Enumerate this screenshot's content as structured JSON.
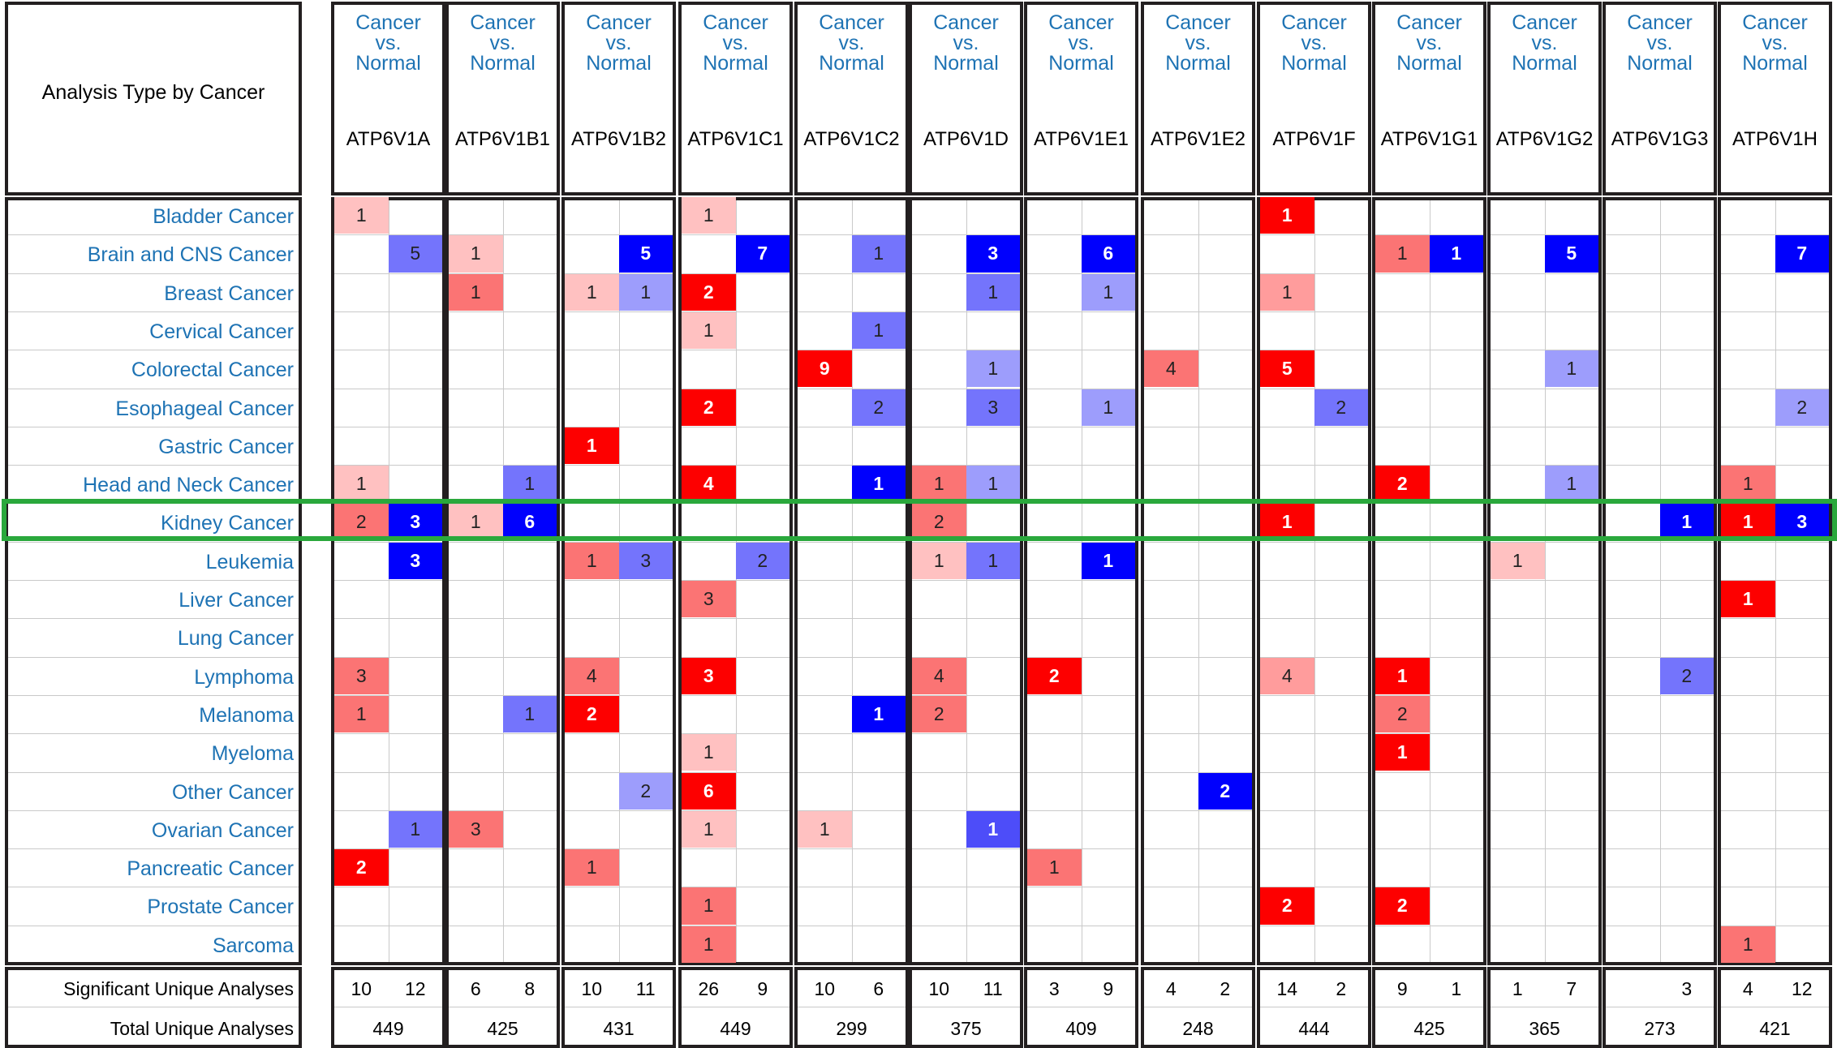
{
  "chart_data": {
    "type": "heatmap",
    "title": "Analysis Type by Cancer",
    "analysis_type_label": "Cancer vs. Normal",
    "genes": [
      "ATP6V1A",
      "ATP6V1B1",
      "ATP6V1B2",
      "ATP6V1C1",
      "ATP6V1C2",
      "ATP6V1D",
      "ATP6V1E1",
      "ATP6V1E2",
      "ATP6V1F",
      "ATP6V1G1",
      "ATP6V1G2",
      "ATP6V1G3",
      "ATP6V1H"
    ],
    "cancers": [
      "Bladder Cancer",
      "Brain and CNS Cancer",
      "Breast Cancer",
      "Cervical Cancer",
      "Colorectal Cancer",
      "Esophageal Cancer",
      "Gastric Cancer",
      "Head and Neck Cancer",
      "Kidney Cancer",
      "Leukemia",
      "Liver Cancer",
      "Lung Cancer",
      "Lymphoma",
      "Melanoma",
      "Myeloma",
      "Other Cancer",
      "Ovarian Cancer",
      "Pancreatic Cancer",
      "Prostate Cancer",
      "Sarcoma"
    ],
    "highlighted_row": "Kidney Cancer",
    "cells": [
      [
        "Bladder Cancer",
        "ATP6V1A",
        "up",
        1,
        1
      ],
      [
        "Bladder Cancer",
        "ATP6V1C1",
        "up",
        1,
        1
      ],
      [
        "Bladder Cancer",
        "ATP6V1F",
        "up",
        1,
        5
      ],
      [
        "Brain and CNS Cancer",
        "ATP6V1A",
        "down",
        5,
        3
      ],
      [
        "Brain and CNS Cancer",
        "ATP6V1B1",
        "up",
        1,
        1
      ],
      [
        "Brain and CNS Cancer",
        "ATP6V1B2",
        "down",
        5,
        5
      ],
      [
        "Brain and CNS Cancer",
        "ATP6V1C1",
        "down",
        7,
        5
      ],
      [
        "Brain and CNS Cancer",
        "ATP6V1C2",
        "down",
        1,
        3
      ],
      [
        "Brain and CNS Cancer",
        "ATP6V1D",
        "down",
        3,
        5
      ],
      [
        "Brain and CNS Cancer",
        "ATP6V1E1",
        "down",
        6,
        5
      ],
      [
        "Brain and CNS Cancer",
        "ATP6V1G1",
        "up",
        1,
        3
      ],
      [
        "Brain and CNS Cancer",
        "ATP6V1G1",
        "down",
        1,
        5
      ],
      [
        "Brain and CNS Cancer",
        "ATP6V1G2",
        "down",
        5,
        5
      ],
      [
        "Brain and CNS Cancer",
        "ATP6V1H",
        "down",
        7,
        5
      ],
      [
        "Breast Cancer",
        "ATP6V1B1",
        "up",
        1,
        3
      ],
      [
        "Breast Cancer",
        "ATP6V1B2",
        "up",
        1,
        1
      ],
      [
        "Breast Cancer",
        "ATP6V1B2",
        "down",
        1,
        2
      ],
      [
        "Breast Cancer",
        "ATP6V1C1",
        "up",
        2,
        5
      ],
      [
        "Breast Cancer",
        "ATP6V1D",
        "down",
        1,
        3
      ],
      [
        "Breast Cancer",
        "ATP6V1E1",
        "down",
        1,
        2
      ],
      [
        "Breast Cancer",
        "ATP6V1F",
        "up",
        1,
        2
      ],
      [
        "Cervical Cancer",
        "ATP6V1C1",
        "up",
        1,
        1
      ],
      [
        "Cervical Cancer",
        "ATP6V1C2",
        "down",
        1,
        3
      ],
      [
        "Colorectal Cancer",
        "ATP6V1C2",
        "up",
        9,
        5
      ],
      [
        "Colorectal Cancer",
        "ATP6V1D",
        "down",
        1,
        2
      ],
      [
        "Colorectal Cancer",
        "ATP6V1E2",
        "up",
        4,
        3
      ],
      [
        "Colorectal Cancer",
        "ATP6V1F",
        "up",
        5,
        5
      ],
      [
        "Colorectal Cancer",
        "ATP6V1G2",
        "down",
        1,
        2
      ],
      [
        "Esophageal Cancer",
        "ATP6V1C1",
        "up",
        2,
        5
      ],
      [
        "Esophageal Cancer",
        "ATP6V1C2",
        "down",
        2,
        3
      ],
      [
        "Esophageal Cancer",
        "ATP6V1D",
        "down",
        3,
        3
      ],
      [
        "Esophageal Cancer",
        "ATP6V1E1",
        "down",
        1,
        2
      ],
      [
        "Esophageal Cancer",
        "ATP6V1F",
        "down",
        2,
        3
      ],
      [
        "Esophageal Cancer",
        "ATP6V1H",
        "down",
        2,
        2
      ],
      [
        "Gastric Cancer",
        "ATP6V1B2",
        "up",
        1,
        5
      ],
      [
        "Head and Neck Cancer",
        "ATP6V1A",
        "up",
        1,
        1
      ],
      [
        "Head and Neck Cancer",
        "ATP6V1B1",
        "down",
        1,
        3
      ],
      [
        "Head and Neck Cancer",
        "ATP6V1C1",
        "up",
        4,
        5
      ],
      [
        "Head and Neck Cancer",
        "ATP6V1C2",
        "down",
        1,
        5
      ],
      [
        "Head and Neck Cancer",
        "ATP6V1D",
        "up",
        1,
        3
      ],
      [
        "Head and Neck Cancer",
        "ATP6V1D",
        "down",
        1,
        2
      ],
      [
        "Head and Neck Cancer",
        "ATP6V1G1",
        "up",
        2,
        5
      ],
      [
        "Head and Neck Cancer",
        "ATP6V1G2",
        "down",
        1,
        2
      ],
      [
        "Head and Neck Cancer",
        "ATP6V1H",
        "up",
        1,
        3
      ],
      [
        "Kidney Cancer",
        "ATP6V1A",
        "up",
        2,
        3
      ],
      [
        "Kidney Cancer",
        "ATP6V1A",
        "down",
        3,
        5
      ],
      [
        "Kidney Cancer",
        "ATP6V1B1",
        "up",
        1,
        1
      ],
      [
        "Kidney Cancer",
        "ATP6V1B1",
        "down",
        6,
        5
      ],
      [
        "Kidney Cancer",
        "ATP6V1D",
        "up",
        2,
        3
      ],
      [
        "Kidney Cancer",
        "ATP6V1F",
        "up",
        1,
        5
      ],
      [
        "Kidney Cancer",
        "ATP6V1G3",
        "down",
        1,
        5
      ],
      [
        "Kidney Cancer",
        "ATP6V1H",
        "up",
        1,
        5
      ],
      [
        "Kidney Cancer",
        "ATP6V1H",
        "down",
        3,
        5
      ],
      [
        "Leukemia",
        "ATP6V1A",
        "down",
        3,
        5
      ],
      [
        "Leukemia",
        "ATP6V1B2",
        "up",
        1,
        3
      ],
      [
        "Leukemia",
        "ATP6V1B2",
        "down",
        3,
        3
      ],
      [
        "Leukemia",
        "ATP6V1C1",
        "down",
        2,
        3
      ],
      [
        "Leukemia",
        "ATP6V1D",
        "up",
        1,
        1
      ],
      [
        "Leukemia",
        "ATP6V1D",
        "down",
        1,
        3
      ],
      [
        "Leukemia",
        "ATP6V1E1",
        "down",
        1,
        5
      ],
      [
        "Leukemia",
        "ATP6V1G2",
        "up",
        1,
        1
      ],
      [
        "Liver Cancer",
        "ATP6V1C1",
        "up",
        3,
        3
      ],
      [
        "Liver Cancer",
        "ATP6V1H",
        "up",
        1,
        5
      ],
      [
        "Lymphoma",
        "ATP6V1A",
        "up",
        3,
        3
      ],
      [
        "Lymphoma",
        "ATP6V1B2",
        "up",
        4,
        3
      ],
      [
        "Lymphoma",
        "ATP6V1C1",
        "up",
        3,
        5
      ],
      [
        "Lymphoma",
        "ATP6V1D",
        "up",
        4,
        3
      ],
      [
        "Lymphoma",
        "ATP6V1E1",
        "up",
        2,
        5
      ],
      [
        "Lymphoma",
        "ATP6V1F",
        "up",
        4,
        2
      ],
      [
        "Lymphoma",
        "ATP6V1G1",
        "up",
        1,
        5
      ],
      [
        "Lymphoma",
        "ATP6V1G3",
        "down",
        2,
        3
      ],
      [
        "Melanoma",
        "ATP6V1A",
        "up",
        1,
        3
      ],
      [
        "Melanoma",
        "ATP6V1B1",
        "down",
        1,
        3
      ],
      [
        "Melanoma",
        "ATP6V1B2",
        "up",
        2,
        5
      ],
      [
        "Melanoma",
        "ATP6V1C2",
        "down",
        1,
        5
      ],
      [
        "Melanoma",
        "ATP6V1D",
        "up",
        2,
        3
      ],
      [
        "Melanoma",
        "ATP6V1G1",
        "up",
        2,
        3
      ],
      [
        "Myeloma",
        "ATP6V1C1",
        "up",
        1,
        1
      ],
      [
        "Myeloma",
        "ATP6V1G1",
        "up",
        1,
        5
      ],
      [
        "Other Cancer",
        "ATP6V1B2",
        "down",
        2,
        2
      ],
      [
        "Other Cancer",
        "ATP6V1C1",
        "up",
        6,
        5
      ],
      [
        "Other Cancer",
        "ATP6V1E2",
        "down",
        2,
        5
      ],
      [
        "Ovarian Cancer",
        "ATP6V1A",
        "down",
        1,
        3
      ],
      [
        "Ovarian Cancer",
        "ATP6V1B1",
        "up",
        3,
        3
      ],
      [
        "Ovarian Cancer",
        "ATP6V1C1",
        "up",
        1,
        1
      ],
      [
        "Ovarian Cancer",
        "ATP6V1C2",
        "up",
        1,
        1
      ],
      [
        "Ovarian Cancer",
        "ATP6V1D",
        "down",
        1,
        4
      ],
      [
        "Pancreatic Cancer",
        "ATP6V1A",
        "up",
        2,
        5
      ],
      [
        "Pancreatic Cancer",
        "ATP6V1B2",
        "up",
        1,
        3
      ],
      [
        "Pancreatic Cancer",
        "ATP6V1E1",
        "up",
        1,
        3
      ],
      [
        "Prostate Cancer",
        "ATP6V1C1",
        "up",
        1,
        3
      ],
      [
        "Prostate Cancer",
        "ATP6V1F",
        "up",
        2,
        5
      ],
      [
        "Prostate Cancer",
        "ATP6V1G1",
        "up",
        2,
        5
      ],
      [
        "Sarcoma",
        "ATP6V1C1",
        "up",
        1,
        3
      ],
      [
        "Sarcoma",
        "ATP6V1H",
        "up",
        1,
        3
      ]
    ],
    "footer": {
      "significant_label": "Significant Unique Analyses",
      "total_label": "Total Unique Analyses",
      "significant_up": [
        "10",
        "6",
        "10",
        "26",
        "10",
        "10",
        "3",
        "4",
        "14",
        "9",
        "1",
        "",
        "4"
      ],
      "significant_down": [
        "12",
        "8",
        "11",
        "9",
        "6",
        "11",
        "9",
        "2",
        "2",
        "1",
        "7",
        "3",
        "12"
      ],
      "total": [
        "449",
        "425",
        "431",
        "449",
        "299",
        "375",
        "409",
        "248",
        "444",
        "425",
        "365",
        "273",
        "421"
      ]
    },
    "colors": {
      "up": [
        "#ffc1c1",
        "#ff9c9c",
        "#fb7474",
        "#fb4545",
        "#fd0000"
      ],
      "down": [
        "#b8b8ff",
        "#9d9dfc",
        "#7474fc",
        "#4d4df9",
        "#0000fd"
      ]
    }
  }
}
